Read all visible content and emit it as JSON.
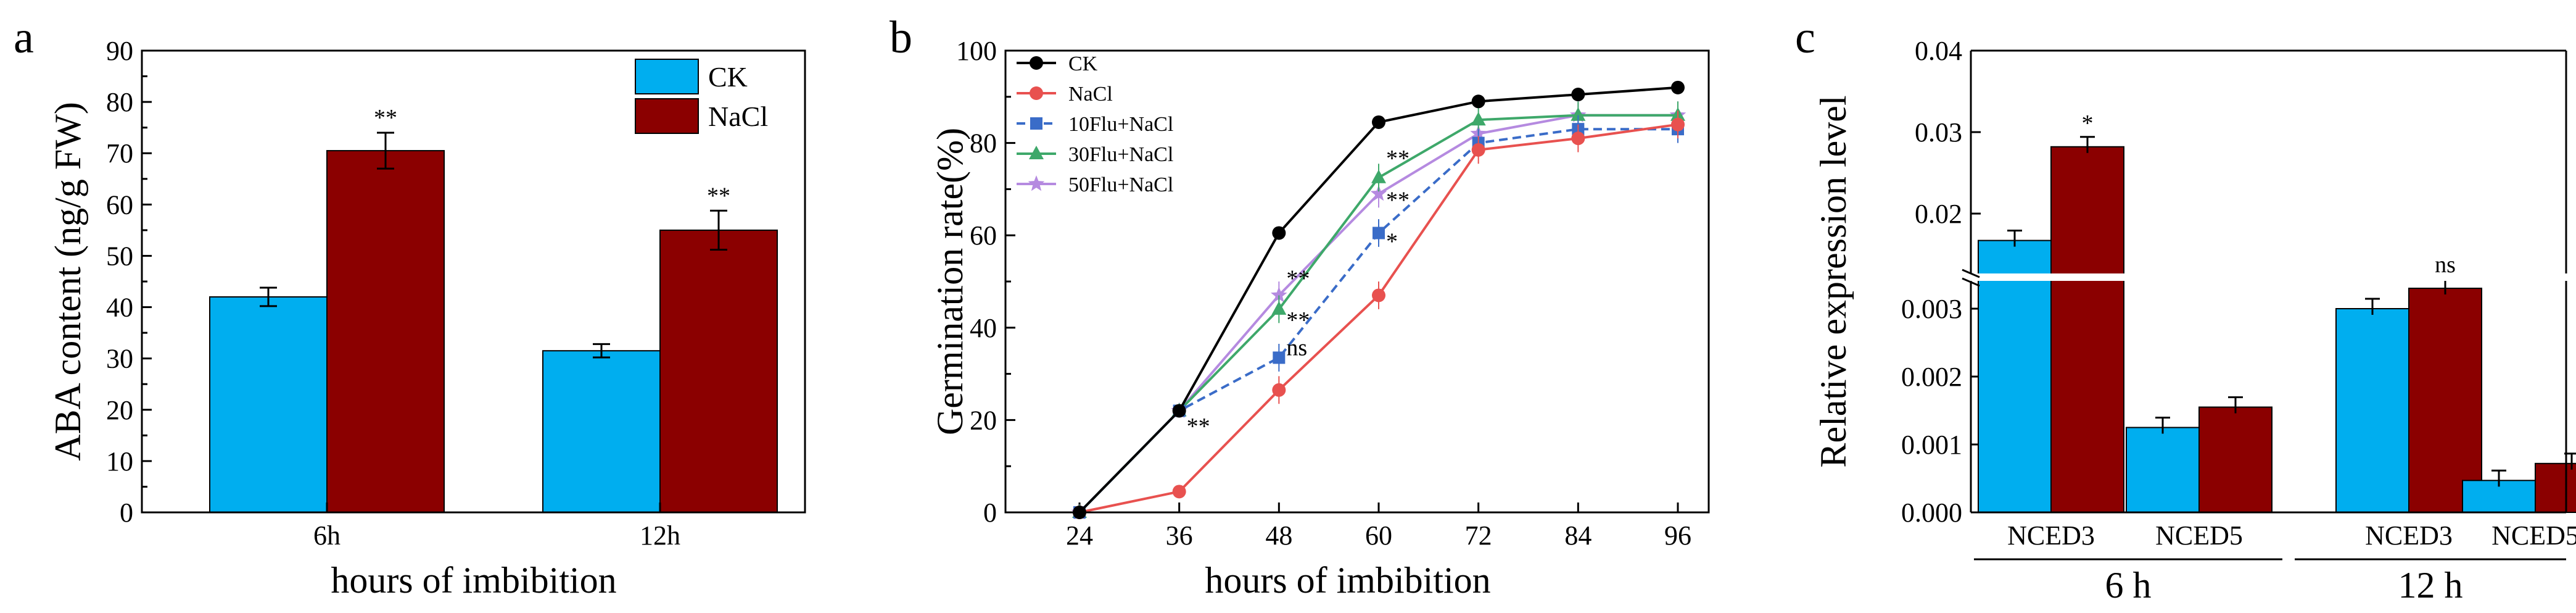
{
  "colors": {
    "ck_bar": "#00AEEF",
    "nacl_bar": "#8B0000",
    "ck_line": "#000000",
    "nacl_line": "#E8514F",
    "flu10_line": "#3A6CC8",
    "flu30_line": "#3EA86A",
    "flu50_line": "#B58AE0"
  },
  "chart_data": [
    {
      "panel": "a",
      "type": "bar",
      "ylabel": "ABA content (ng/g FW)",
      "xlabel": "hours of imbibition",
      "ylim": [
        0,
        90
      ],
      "yticks": [
        0,
        10,
        20,
        30,
        40,
        50,
        60,
        70,
        80,
        90
      ],
      "categories": [
        "6h",
        "12h"
      ],
      "series": [
        {
          "name": "CK",
          "values": [
            42,
            31.5
          ],
          "errors": [
            1.8,
            1.3
          ]
        },
        {
          "name": "NaCl",
          "values": [
            70.5,
            55
          ],
          "errors": [
            3.5,
            3.8
          ]
        }
      ],
      "significance": [
        "**",
        "**"
      ],
      "legend": [
        "CK",
        "NaCl"
      ]
    },
    {
      "panel": "b",
      "type": "line",
      "ylabel": "Germination rate(%)",
      "xlabel": "hours of imbibition",
      "x": [
        24,
        36,
        48,
        60,
        72,
        84,
        96
      ],
      "ylim": [
        0,
        100
      ],
      "yticks": [
        0,
        20,
        40,
        60,
        80,
        100
      ],
      "series": [
        {
          "name": "CK",
          "values": [
            0,
            22,
            60.5,
            84.5,
            89,
            90.5,
            92
          ],
          "marker": "circle"
        },
        {
          "name": "NaCl",
          "values": [
            0,
            4.5,
            26.5,
            47,
            78.5,
            81,
            84
          ],
          "marker": "circle"
        },
        {
          "name": "10Flu+NaCl",
          "values": [
            0,
            22,
            33.5,
            60.5,
            80,
            83,
            83
          ],
          "marker": "square"
        },
        {
          "name": "30Flu+NaCl",
          "values": [
            0,
            22,
            44,
            72.5,
            85,
            86,
            86
          ],
          "marker": "triangle"
        },
        {
          "name": "50Flu+NaCl",
          "values": [
            0,
            22,
            47,
            69,
            82,
            86,
            86
          ],
          "marker": "star"
        }
      ],
      "annotations": [
        {
          "text": "**",
          "x": 36,
          "y": 17
        },
        {
          "text": "**",
          "x": 48,
          "y": 49
        },
        {
          "text": "**",
          "x": 48,
          "y": 40
        },
        {
          "text": "ns",
          "x": 48,
          "y": 34
        },
        {
          "text": "**",
          "x": 60,
          "y": 75
        },
        {
          "text": "**",
          "x": 60,
          "y": 66
        },
        {
          "text": "*",
          "x": 60,
          "y": 57
        }
      ]
    },
    {
      "panel": "c",
      "type": "bar",
      "ylabel": "Relative expression level",
      "axis_break": true,
      "lower_yticks": [
        "0.000",
        "0.001",
        "0.002",
        "0.003"
      ],
      "upper_yticks": [
        "0.02",
        "0.03",
        "0.04"
      ],
      "categories": [
        "NCED3",
        "NCED5",
        "NCED3",
        "NCED5"
      ],
      "groups": [
        "6 h",
        "12 h"
      ],
      "series": [
        {
          "name": "CK",
          "values": [
            0.0167,
            0.00125,
            0.003,
            0.00047
          ]
        },
        {
          "name": "NaCl",
          "values": [
            0.0282,
            0.00155,
            0.0033,
            0.00072
          ]
        }
      ],
      "significance": [
        "*",
        "",
        "ns",
        ""
      ]
    }
  ]
}
